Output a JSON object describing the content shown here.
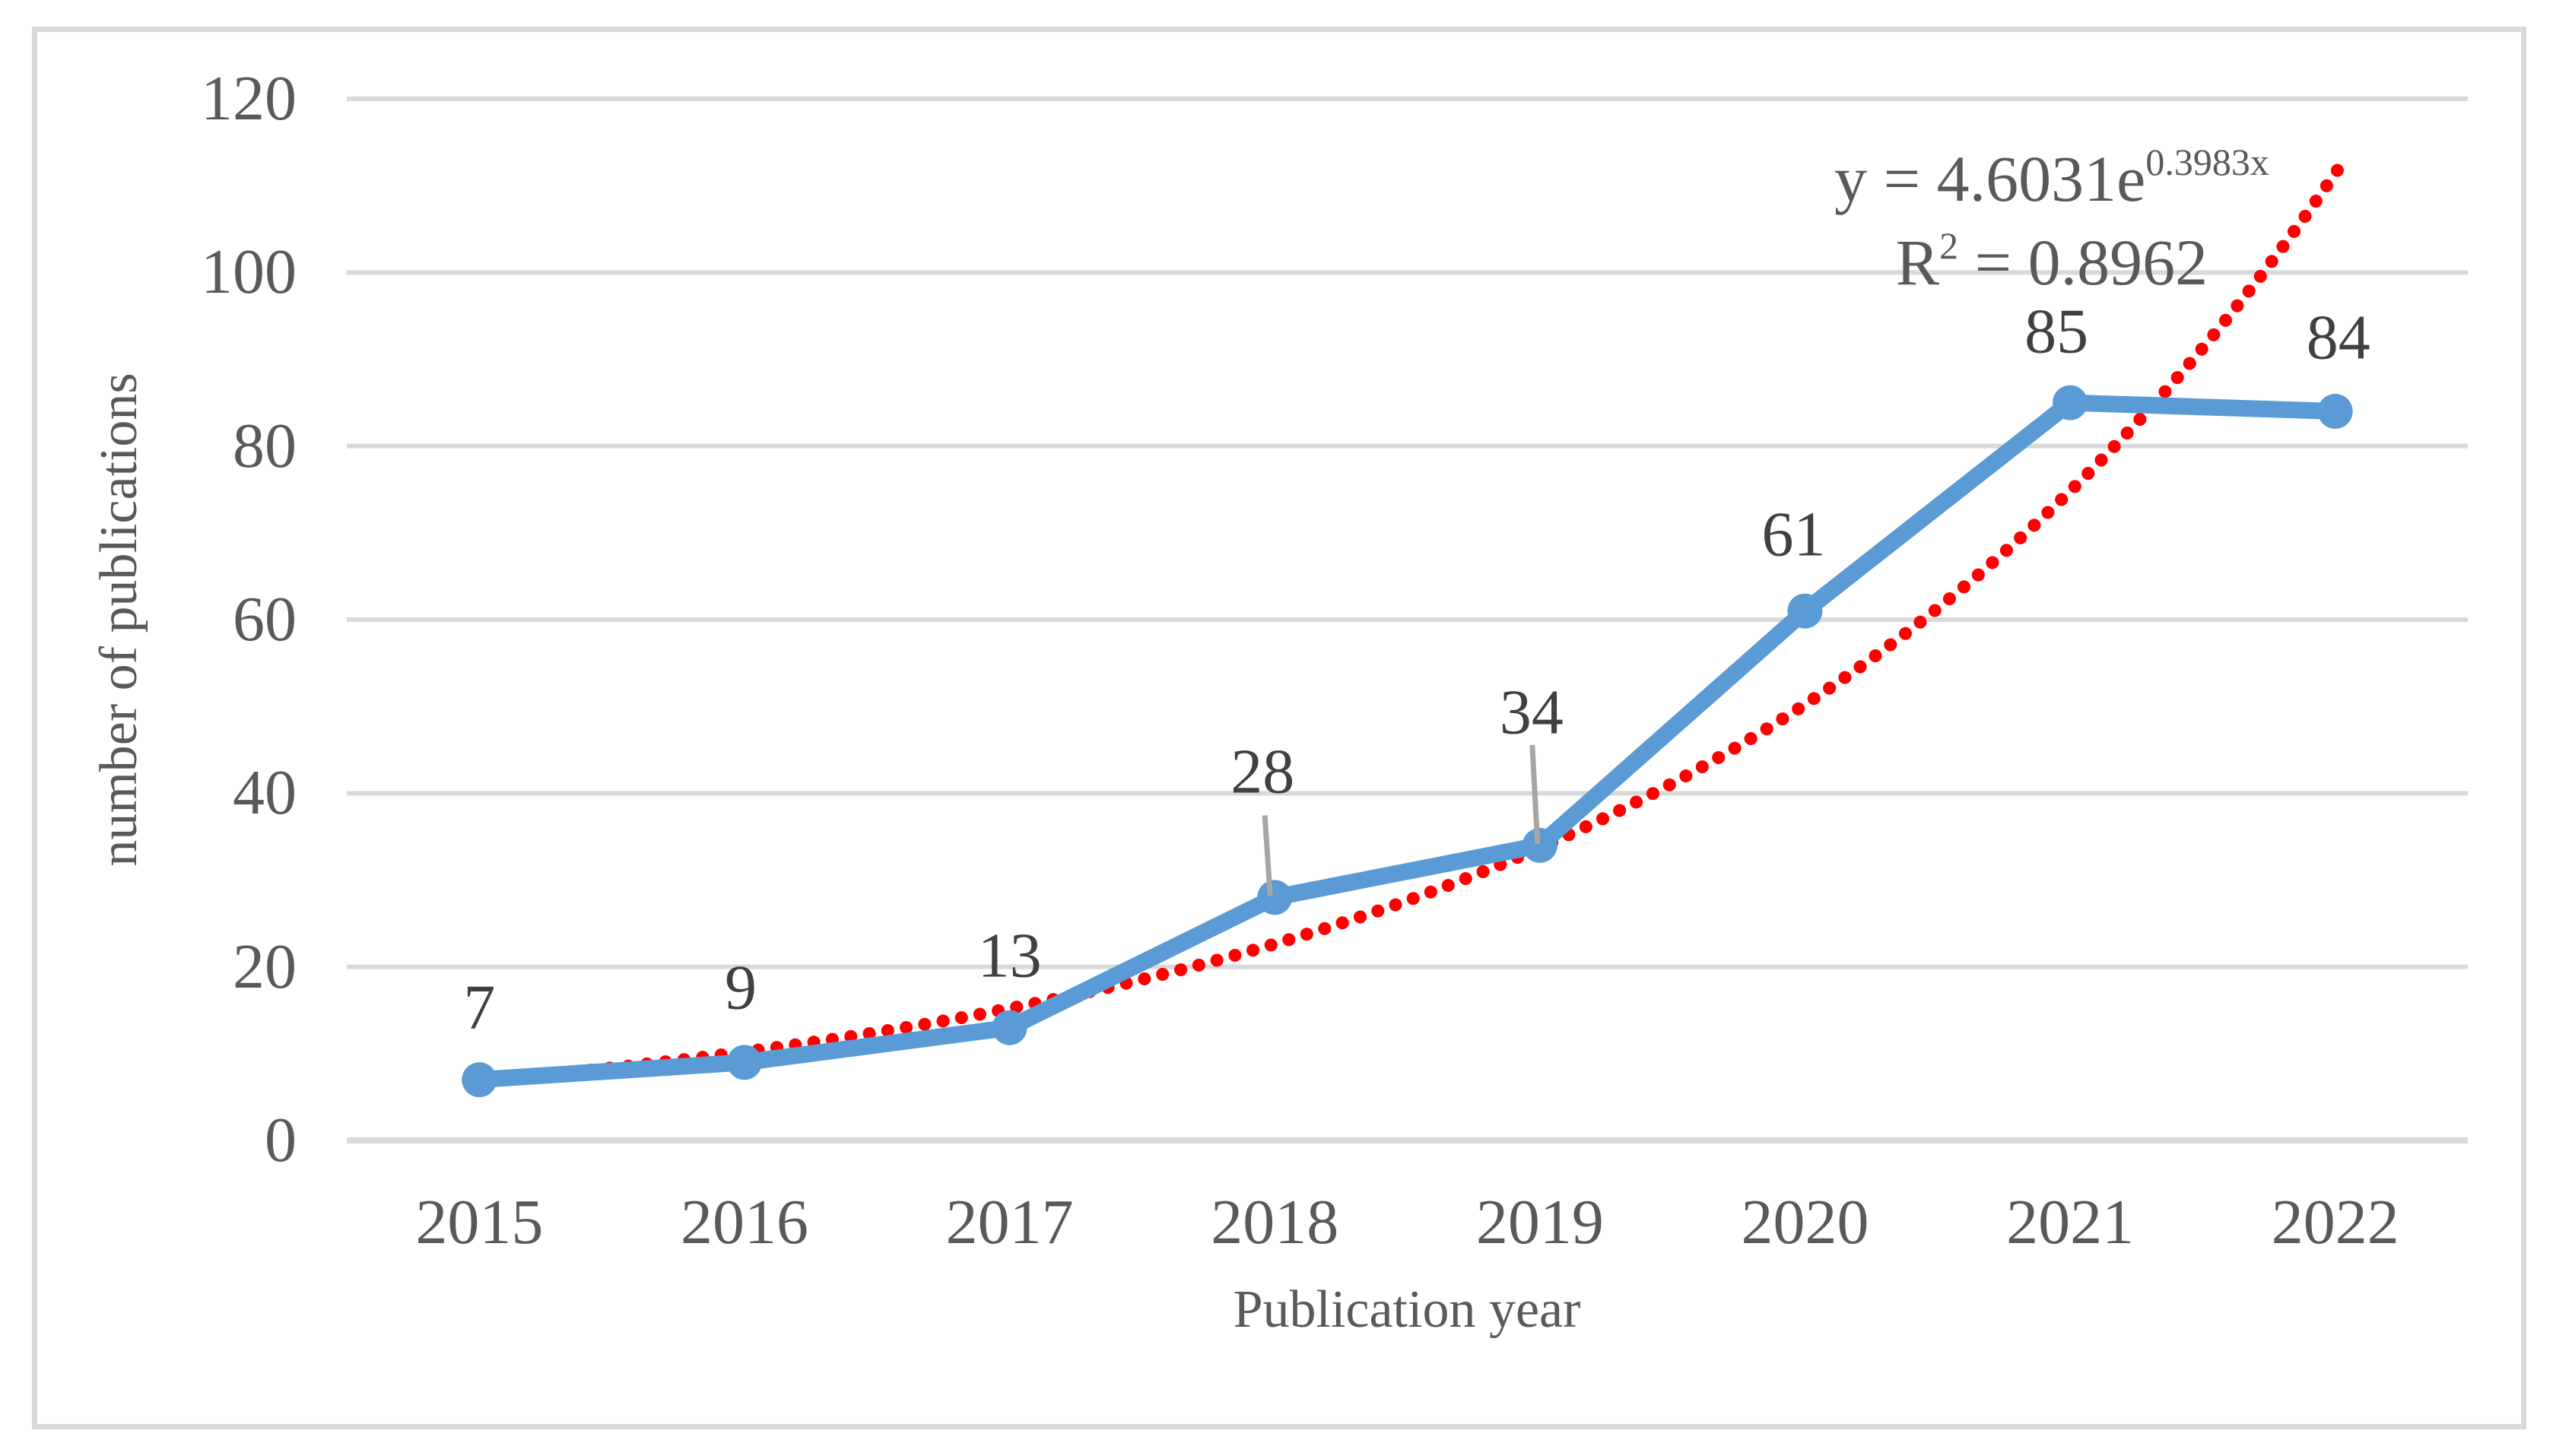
{
  "figure": {
    "background": "#FFFFFF",
    "frame_color": "#D9D9D9"
  },
  "chart_data": {
    "type": "line",
    "title": "",
    "xlabel": "Publication year",
    "ylabel": "number of publications",
    "categories": [
      "2015",
      "2016",
      "2017",
      "2018",
      "2019",
      "2020",
      "2021",
      "2022"
    ],
    "series": [
      {
        "name": "number of publications",
        "color": "#5B9BD5",
        "marker": "circle",
        "values": [
          7,
          9,
          13,
          28,
          34,
          61,
          85,
          84
        ]
      }
    ],
    "data_labels": [
      "7",
      "9",
      "13",
      "28",
      "34",
      "61",
      "85",
      "84"
    ],
    "trendline": {
      "type": "exponential",
      "style": "dotted",
      "color": "#FF0000",
      "a": 4.6031,
      "b": 0.3983,
      "equation_text": "y = 4.6031e^0.3983x",
      "equation_base": "y = 4.6031e",
      "equation_sup": "0.3983x",
      "r_squared_text": "R² = 0.8962",
      "r2_base": "R",
      "r2_sup": "2",
      "r2_rest": " = 0.8962"
    },
    "y_axis": {
      "min": 0,
      "max": 120,
      "ticks": [
        0,
        20,
        40,
        60,
        80,
        100,
        120
      ],
      "grid": true
    },
    "x_axis": {
      "grid": false
    },
    "legend": "none",
    "colors": {
      "gridline": "#D9D9D9",
      "tick_text": "#595959",
      "data_label_text": "#404040",
      "leader_line": "#A6A6A6"
    }
  }
}
